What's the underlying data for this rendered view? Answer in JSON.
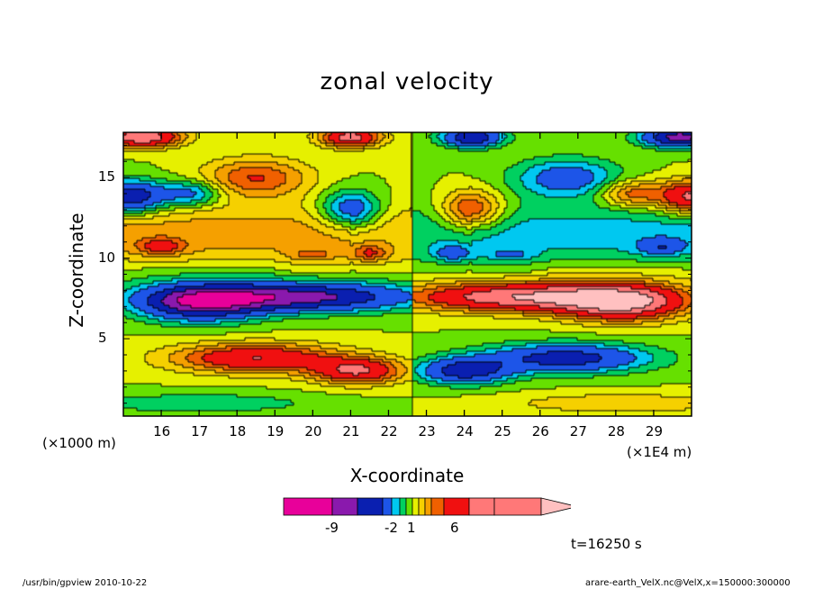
{
  "chart_data": {
    "type": "heatmap",
    "subtype": "filled-contour",
    "title": "zonal velocity",
    "xlabel": "X-coordinate",
    "ylabel": "Z-coordinate",
    "x_unit_left": "(×1000 m)",
    "x_unit_right": "(×1E4 m)",
    "x_ticks": [
      "16",
      "17",
      "18",
      "19",
      "20",
      "21",
      "22",
      "23",
      "24",
      "25",
      "26",
      "27",
      "28",
      "29"
    ],
    "x_tick_values": [
      16,
      17,
      18,
      19,
      20,
      21,
      22,
      23,
      24,
      25,
      26,
      27,
      28,
      29
    ],
    "y_ticks": [
      "5",
      "10",
      "15"
    ],
    "y_tick_values": [
      5,
      10,
      15
    ],
    "xlim": [
      15.0,
      30.0
    ],
    "ylim": [
      0.2,
      17.8
    ],
    "symmetry_x": 22.6,
    "features": [
      {
        "x": 18.5,
        "z": 3.8,
        "value": 6
      },
      {
        "x": 21.2,
        "z": 3.0,
        "value": 6
      },
      {
        "x": 19.5,
        "z": 7.6,
        "value": -8
      },
      {
        "x": 17.0,
        "z": 7.2,
        "value": -7
      },
      {
        "x": 15.2,
        "z": 13.8,
        "value": -7
      },
      {
        "x": 16.8,
        "z": 14.0,
        "value": -4
      },
      {
        "x": 21.0,
        "z": 13.0,
        "value": -5
      },
      {
        "x": 18.5,
        "z": 15.0,
        "value": 4
      },
      {
        "x": 15.5,
        "z": 17.5,
        "value": 8
      },
      {
        "x": 21.0,
        "z": 17.5,
        "value": 7
      },
      {
        "x": 20.0,
        "z": 10.2,
        "value": 2
      },
      {
        "x": 21.5,
        "z": 10.3,
        "value": 3
      },
      {
        "x": 16.0,
        "z": 10.7,
        "value": 3
      },
      {
        "x": 17.0,
        "z": 1.0,
        "value": -2
      }
    ],
    "colorbar": {
      "levels": [
        "-9",
        "-2",
        "1",
        "6"
      ],
      "colors": [
        "#e8009a",
        "#8a19ad",
        "#0a1fb0",
        "#1d55e8",
        "#00c8f0",
        "#00d060",
        "#66e000",
        "#e6f000",
        "#f5d000",
        "#f5a000",
        "#f06000",
        "#f01010",
        "#ff7878",
        "#ffc0c0"
      ]
    },
    "time": "t=16250 s"
  },
  "footer": {
    "left": "/usr/bin/gpview   2010-10-22",
    "right": "arare-earth_VelX.nc@VelX,x=150000:300000"
  }
}
